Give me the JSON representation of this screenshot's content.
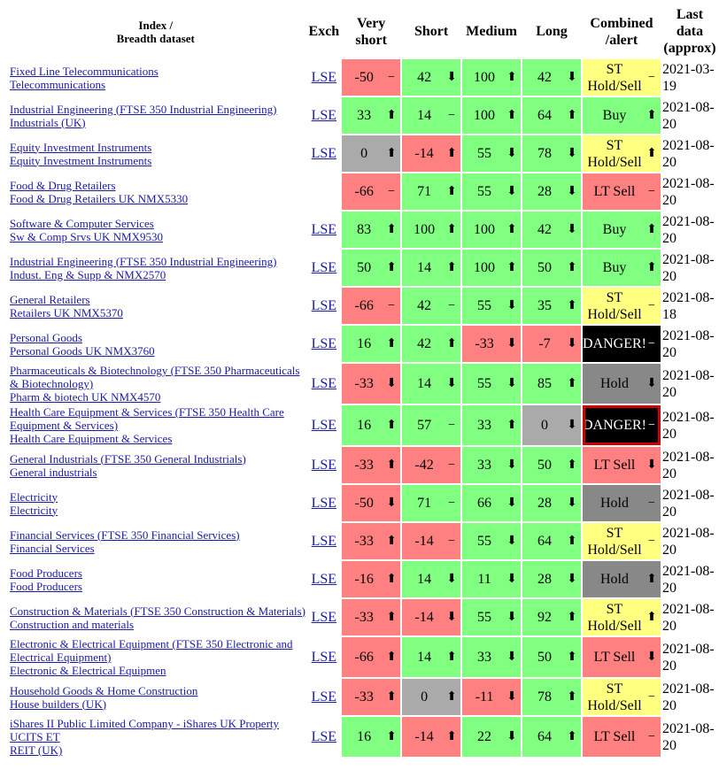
{
  "header": {
    "index": [
      "Index /",
      "Breadth dataset"
    ],
    "exch": "Exch",
    "very_short": "Very short",
    "short": "Short",
    "medium": "Medium",
    "long": "Long",
    "combined": "Combined /alert",
    "last": "Last data (approx)"
  },
  "table": {
    "rows": [
      {
        "name": [
          "Fixed Line Telecommunications",
          "Telecommunications"
        ],
        "exch": "LSE",
        "cells": [
          {
            "v": -50,
            "a": "−",
            "bg": "#ff8080"
          },
          {
            "v": 42,
            "a": "⬇",
            "bg": "#80ff80"
          },
          {
            "v": 100,
            "a": "⬆",
            "bg": "#80ff80"
          },
          {
            "v": 42,
            "a": "⬇",
            "bg": "#80ff80"
          }
        ],
        "alert": {
          "text": "ST Hold/Sell",
          "a": "−",
          "bg": "#ffff80"
        },
        "date": "2021-03-19"
      },
      {
        "name": [
          "Industrial Engineering (FTSE 350 Industrial Engineering)",
          "Industrials (UK)"
        ],
        "exch": "LSE",
        "cells": [
          {
            "v": 33,
            "a": "⬆",
            "bg": "#80ff80"
          },
          {
            "v": 14,
            "a": "−",
            "bg": "#80ff80"
          },
          {
            "v": 100,
            "a": "⬆",
            "bg": "#80ff80"
          },
          {
            "v": 64,
            "a": "⬆",
            "bg": "#80ff80"
          }
        ],
        "alert": {
          "text": "Buy",
          "a": "⬆",
          "bg": "#80ff80"
        },
        "date": "2021-08-20"
      },
      {
        "name": [
          "Equity Investment Instruments",
          "Equity Investment Instruments"
        ],
        "exch": "LSE",
        "cells": [
          {
            "v": 0,
            "a": "⬆",
            "bg": "#aaaaaa"
          },
          {
            "v": -14,
            "a": "⬆",
            "bg": "#ff8080"
          },
          {
            "v": 55,
            "a": "⬇",
            "bg": "#80ff80"
          },
          {
            "v": 78,
            "a": "⬇",
            "bg": "#80ff80"
          }
        ],
        "alert": {
          "text": "ST Hold/Sell",
          "a": "⬆",
          "bg": "#ffff80"
        },
        "date": "2021-08-20"
      },
      {
        "name": [
          "Food & Drug Retailers",
          "Food & Drug Retailers UK NMX5330"
        ],
        "cells": [
          {
            "v": -66,
            "a": "−",
            "bg": "#ff8080"
          },
          {
            "v": 71,
            "a": "⬆",
            "bg": "#80ff80"
          },
          {
            "v": 55,
            "a": "⬇",
            "bg": "#80ff80"
          },
          {
            "v": 28,
            "a": "⬇",
            "bg": "#80ff80"
          }
        ],
        "alert": {
          "text": "LT Sell",
          "a": "−",
          "bg": "#ff8080"
        },
        "date": "2021-08-20"
      },
      {
        "name": [
          "Software & Computer Services",
          "Sw & Comp Srvs UK NMX9530"
        ],
        "exch": "LSE",
        "cells": [
          {
            "v": 83,
            "a": "⬆",
            "bg": "#80ff80"
          },
          {
            "v": 100,
            "a": "⬆",
            "bg": "#80ff80"
          },
          {
            "v": 100,
            "a": "⬆",
            "bg": "#80ff80"
          },
          {
            "v": 42,
            "a": "⬇",
            "bg": "#80ff80"
          }
        ],
        "alert": {
          "text": "Buy",
          "a": "⬆",
          "bg": "#80ff80"
        },
        "date": "2021-08-20"
      },
      {
        "name": [
          "Industrial Engineering (FTSE 350 Industrial Engineering)",
          "Indust. Eng & Supp & NMX2570"
        ],
        "exch": "LSE",
        "cells": [
          {
            "v": 50,
            "a": "⬆",
            "bg": "#80ff80"
          },
          {
            "v": 14,
            "a": "⬆",
            "bg": "#80ff80"
          },
          {
            "v": 100,
            "a": "⬆",
            "bg": "#80ff80"
          },
          {
            "v": 50,
            "a": "⬆",
            "bg": "#80ff80"
          }
        ],
        "alert": {
          "text": "Buy",
          "a": "⬆",
          "bg": "#80ff80"
        },
        "date": "2021-08-20"
      },
      {
        "name": [
          "General Retailers",
          "Retailers UK NMX5370"
        ],
        "exch": "LSE",
        "cells": [
          {
            "v": -66,
            "a": "−",
            "bg": "#ff8080"
          },
          {
            "v": 42,
            "a": "−",
            "bg": "#80ff80"
          },
          {
            "v": 55,
            "a": "⬇",
            "bg": "#80ff80"
          },
          {
            "v": 35,
            "a": "⬆",
            "bg": "#80ff80"
          }
        ],
        "alert": {
          "text": "ST Hold/Sell",
          "a": "−",
          "bg": "#ffff80"
        },
        "date": "2021-08-18"
      },
      {
        "name": [
          "Personal Goods",
          "Personal Goods UK NMX3760"
        ],
        "exch": "LSE",
        "cells": [
          {
            "v": 16,
            "a": "⬆",
            "bg": "#80ff80"
          },
          {
            "v": 42,
            "a": "⬆",
            "bg": "#80ff80"
          },
          {
            "v": -33,
            "a": "⬇",
            "bg": "#ff8080"
          },
          {
            "v": -7,
            "a": "⬇",
            "bg": "#ff8080"
          }
        ],
        "alert": {
          "text": "DANGER!",
          "a": "−",
          "bg": "#000000"
        },
        "date": "2021-08-20"
      },
      {
        "name": [
          "Pharmaceuticals & Biotechnology (FTSE 350 Pharmaceuticals & Biotechnology)",
          "Pharm & biotech UK NMX4570"
        ],
        "exch": "LSE",
        "cells": [
          {
            "v": -33,
            "a": "⬇",
            "bg": "#ff8080"
          },
          {
            "v": 14,
            "a": "⬇",
            "bg": "#80ff80"
          },
          {
            "v": 55,
            "a": "⬇",
            "bg": "#80ff80"
          },
          {
            "v": 85,
            "a": "⬆",
            "bg": "#80ff80"
          }
        ],
        "alert": {
          "text": "Hold",
          "a": "⬇",
          "bg": "#888888"
        },
        "date": "2021-08-20"
      },
      {
        "name": [
          "Health Care Equipment & Services (FTSE 350 Health Care Equipment & Services)",
          "Health Care Equipment & Services"
        ],
        "exch": "LSE",
        "cells": [
          {
            "v": 16,
            "a": "⬆",
            "bg": "#80ff80"
          },
          {
            "v": 57,
            "a": "−",
            "bg": "#80ff80"
          },
          {
            "v": 33,
            "a": "⬆",
            "bg": "#80ff80"
          },
          {
            "v": 0,
            "a": "⬇",
            "bg": "#aaaaaa"
          }
        ],
        "alert": {
          "text": "DANGER!",
          "a": "−",
          "bg": "#000000",
          "border": "#cc0000"
        },
        "date": "2021-08-20"
      },
      {
        "name": [
          "General Industrials (FTSE 350 General Industrials)",
          "General industrials"
        ],
        "exch": "LSE",
        "cells": [
          {
            "v": -33,
            "a": "⬆",
            "bg": "#ff8080"
          },
          {
            "v": -42,
            "a": "−",
            "bg": "#ff8080"
          },
          {
            "v": 33,
            "a": "⬇",
            "bg": "#80ff80"
          },
          {
            "v": 50,
            "a": "⬆",
            "bg": "#80ff80"
          }
        ],
        "alert": {
          "text": "LT Sell",
          "a": "⬇",
          "bg": "#ff8080"
        },
        "date": "2021-08-20"
      },
      {
        "name": [
          "Electricity",
          "Electricity"
        ],
        "exch": "LSE",
        "cells": [
          {
            "v": -50,
            "a": "⬇",
            "bg": "#ff8080"
          },
          {
            "v": 71,
            "a": "−",
            "bg": "#80ff80"
          },
          {
            "v": 66,
            "a": "⬇",
            "bg": "#80ff80"
          },
          {
            "v": 28,
            "a": "⬇",
            "bg": "#80ff80"
          }
        ],
        "alert": {
          "text": "Hold",
          "a": "−",
          "bg": "#888888"
        },
        "date": "2021-08-20"
      },
      {
        "name": [
          "Financial Services (FTSE 350 Financial Services)",
          "Financial Services"
        ],
        "exch": "LSE",
        "cells": [
          {
            "v": -33,
            "a": "⬆",
            "bg": "#ff8080"
          },
          {
            "v": -14,
            "a": "−",
            "bg": "#ff8080"
          },
          {
            "v": 55,
            "a": "⬇",
            "bg": "#80ff80"
          },
          {
            "v": 64,
            "a": "⬆",
            "bg": "#80ff80"
          }
        ],
        "alert": {
          "text": "ST Hold/Sell",
          "a": "−",
          "bg": "#ffff80"
        },
        "date": "2021-08-20"
      },
      {
        "name": [
          "Food Producers",
          "Food Producers"
        ],
        "exch": "LSE",
        "cells": [
          {
            "v": -16,
            "a": "⬆",
            "bg": "#ff8080"
          },
          {
            "v": 14,
            "a": "⬇",
            "bg": "#80ff80"
          },
          {
            "v": 11,
            "a": "⬇",
            "bg": "#80ff80"
          },
          {
            "v": 28,
            "a": "⬇",
            "bg": "#80ff80"
          }
        ],
        "alert": {
          "text": "Hold",
          "a": "⬆",
          "bg": "#888888"
        },
        "date": "2021-08-20"
      },
      {
        "name": [
          "Construction & Materials (FTSE 350 Construction & Materials)",
          "Construction and materials"
        ],
        "exch": "LSE",
        "cells": [
          {
            "v": -33,
            "a": "⬆",
            "bg": "#ff8080"
          },
          {
            "v": -14,
            "a": "⬇",
            "bg": "#ff8080"
          },
          {
            "v": 55,
            "a": "⬇",
            "bg": "#80ff80"
          },
          {
            "v": 92,
            "a": "⬆",
            "bg": "#80ff80"
          }
        ],
        "alert": {
          "text": "ST Hold/Sell",
          "a": "⬆",
          "bg": "#ffff80"
        },
        "date": "2021-08-20"
      },
      {
        "name": [
          "Electronic & Electrical Equipment (FTSE 350 Electronic and Electrical Equipment)",
          "Electronic & Electrical Equipmen"
        ],
        "exch": "LSE",
        "cells": [
          {
            "v": -66,
            "a": "⬆",
            "bg": "#ff8080"
          },
          {
            "v": 14,
            "a": "⬆",
            "bg": "#80ff80"
          },
          {
            "v": 33,
            "a": "⬇",
            "bg": "#80ff80"
          },
          {
            "v": 50,
            "a": "⬆",
            "bg": "#80ff80"
          }
        ],
        "alert": {
          "text": "LT Sell",
          "a": "⬇",
          "bg": "#ff8080"
        },
        "date": "2021-08-20"
      },
      {
        "name": [
          "Household Goods & Home Construction",
          "House builders (UK)"
        ],
        "exch": "LSE",
        "cells": [
          {
            "v": -33,
            "a": "⬆",
            "bg": "#ff8080"
          },
          {
            "v": 0,
            "a": "⬆",
            "bg": "#aaaaaa"
          },
          {
            "v": -11,
            "a": "⬇",
            "bg": "#ff8080"
          },
          {
            "v": 78,
            "a": "⬆",
            "bg": "#80ff80"
          }
        ],
        "alert": {
          "text": "ST Hold/Sell",
          "a": "−",
          "bg": "#ffff80"
        },
        "date": "2021-08-20"
      },
      {
        "name": [
          "iShares II Public Limited Company - iShares UK Property UCITS ET",
          "REIT (UK)"
        ],
        "exch": "LSE",
        "cells": [
          {
            "v": 16,
            "a": "⬆",
            "bg": "#80ff80"
          },
          {
            "v": -14,
            "a": "⬆",
            "bg": "#ff8080"
          },
          {
            "v": 22,
            "a": "⬇",
            "bg": "#80ff80"
          },
          {
            "v": 64,
            "a": "⬆",
            "bg": "#80ff80"
          }
        ],
        "alert": {
          "text": "LT Sell",
          "a": "−",
          "bg": "#ff8080"
        },
        "date": "2021-08-20"
      }
    ]
  }
}
